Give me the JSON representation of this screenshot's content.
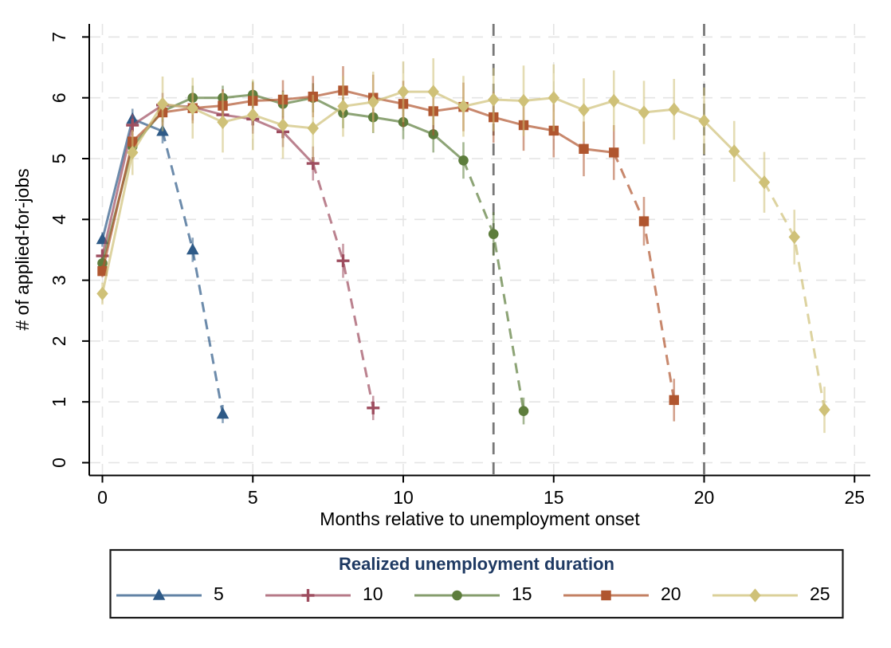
{
  "chart_data": {
    "type": "line",
    "title": "",
    "xlabel": "Months relative to unemployment onset",
    "ylabel": "# of applied-for-jobs",
    "xlim": [
      -0.45,
      25.6
    ],
    "ylim": [
      -0.22,
      7.25
    ],
    "xticks": [
      0,
      5,
      10,
      15,
      20,
      25
    ],
    "yticks": [
      0,
      1,
      2,
      3,
      4,
      5,
      6,
      7
    ],
    "grid": "light dashed gridlines on both axes",
    "reference_lines_x": [
      13,
      20
    ],
    "reference_line_color": "#787878",
    "grid_color": "#e4e4e4",
    "axis_color": "#000000",
    "legend": {
      "title": "Realized unemployment duration",
      "title_color": "#1f3a63",
      "position": "bottom",
      "border_color": "#1a1a1a",
      "entries": [
        "5",
        "10",
        "15",
        "20",
        "25"
      ]
    },
    "series": [
      {
        "name": "5",
        "marker": "triangle",
        "color": "#2e5a87",
        "dash_from_x": 2,
        "points": [
          [
            0,
            3.67
          ],
          [
            1,
            5.65
          ],
          [
            2,
            5.45
          ],
          [
            3,
            3.5
          ],
          [
            4,
            0.8
          ]
        ],
        "errors": [
          0.12,
          0.17,
          0.2,
          0.2,
          0.15
        ]
      },
      {
        "name": "10",
        "marker": "plus",
        "color": "#9e4d5f",
        "dash_from_x": 7,
        "points": [
          [
            0,
            3.4
          ],
          [
            1,
            5.55
          ],
          [
            2,
            5.88
          ],
          [
            3,
            5.85
          ],
          [
            4,
            5.72
          ],
          [
            5,
            5.65
          ],
          [
            6,
            5.44
          ],
          [
            7,
            4.92
          ],
          [
            8,
            3.32
          ],
          [
            9,
            0.9
          ]
        ],
        "errors": [
          0.12,
          0.18,
          0.2,
          0.22,
          0.22,
          0.24,
          0.25,
          0.28,
          0.28,
          0.2
        ]
      },
      {
        "name": "15",
        "marker": "circle",
        "color": "#5d7d3c",
        "dash_from_x": 12,
        "points": [
          [
            0,
            3.28
          ],
          [
            1,
            5.2
          ],
          [
            2,
            5.78
          ],
          [
            3,
            6.0
          ],
          [
            4,
            6.0
          ],
          [
            5,
            6.05
          ],
          [
            6,
            5.9
          ],
          [
            7,
            6.0
          ],
          [
            8,
            5.75
          ],
          [
            9,
            5.68
          ],
          [
            10,
            5.6
          ],
          [
            11,
            5.4
          ],
          [
            12,
            4.97
          ],
          [
            13,
            3.76
          ],
          [
            14,
            0.85
          ]
        ],
        "errors": [
          0.1,
          0.15,
          0.18,
          0.2,
          0.2,
          0.22,
          0.22,
          0.24,
          0.25,
          0.26,
          0.28,
          0.3,
          0.3,
          0.36,
          0.22
        ]
      },
      {
        "name": "20",
        "marker": "square",
        "color": "#b0562f",
        "dash_from_x": 17,
        "points": [
          [
            0,
            3.15
          ],
          [
            1,
            5.28
          ],
          [
            2,
            5.76
          ],
          [
            3,
            5.83
          ],
          [
            4,
            5.87
          ],
          [
            5,
            5.95
          ],
          [
            6,
            5.97
          ],
          [
            7,
            6.02
          ],
          [
            8,
            6.12
          ],
          [
            9,
            6.0
          ],
          [
            10,
            5.9
          ],
          [
            11,
            5.78
          ],
          [
            12,
            5.85
          ],
          [
            13,
            5.68
          ],
          [
            14,
            5.55
          ],
          [
            15,
            5.46
          ],
          [
            16,
            5.16
          ],
          [
            17,
            5.1
          ],
          [
            18,
            3.97
          ],
          [
            19,
            1.03
          ]
        ],
        "errors": [
          0.1,
          0.18,
          0.22,
          0.25,
          0.27,
          0.3,
          0.32,
          0.34,
          0.4,
          0.38,
          0.38,
          0.4,
          0.4,
          0.42,
          0.42,
          0.44,
          0.45,
          0.45,
          0.4,
          0.35
        ]
      },
      {
        "name": "25",
        "marker": "diamond",
        "color": "#cfc178",
        "dash_from_x": 22,
        "points": [
          [
            0,
            2.78
          ],
          [
            1,
            5.1
          ],
          [
            2,
            5.9
          ],
          [
            3,
            5.83
          ],
          [
            4,
            5.6
          ],
          [
            5,
            5.72
          ],
          [
            6,
            5.55
          ],
          [
            7,
            5.5
          ],
          [
            8,
            5.86
          ],
          [
            9,
            5.93
          ],
          [
            10,
            6.1
          ],
          [
            11,
            6.1
          ],
          [
            12,
            5.86
          ],
          [
            13,
            5.97
          ],
          [
            14,
            5.95
          ],
          [
            15,
            6.0
          ],
          [
            16,
            5.8
          ],
          [
            17,
            5.95
          ],
          [
            18,
            5.76
          ],
          [
            19,
            5.81
          ],
          [
            20,
            5.62
          ],
          [
            21,
            5.12
          ],
          [
            22,
            4.61
          ],
          [
            23,
            3.71
          ],
          [
            24,
            0.87
          ]
        ],
        "errors": [
          0.18,
          0.37,
          0.45,
          0.5,
          0.5,
          0.58,
          0.55,
          0.55,
          0.5,
          0.5,
          0.5,
          0.55,
          0.5,
          0.52,
          0.58,
          0.55,
          0.52,
          0.5,
          0.52,
          0.5,
          0.55,
          0.5,
          0.5,
          0.45,
          0.38
        ]
      }
    ]
  }
}
